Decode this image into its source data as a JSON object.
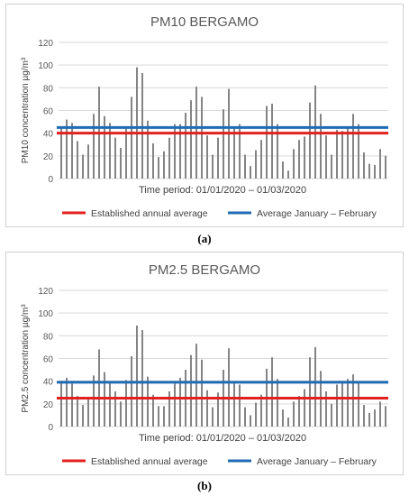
{
  "chart_data": [
    {
      "type": "bar",
      "title": "PM10 BERGAMO",
      "ylabel": "PM10 concentration µg/m³",
      "xlabel": "Time period: 01/01/2020 – 01/03/2020",
      "ylim": [
        0,
        120
      ],
      "yticks": [
        0,
        20,
        40,
        60,
        80,
        100,
        120
      ],
      "values": [
        45,
        52,
        49,
        33,
        21,
        30,
        57,
        81,
        55,
        49,
        36,
        27,
        45,
        72,
        98,
        93,
        51,
        31,
        19,
        24,
        36,
        48,
        48,
        58,
        69,
        81,
        72,
        38,
        21,
        36,
        61,
        79,
        46,
        48,
        21,
        11,
        25,
        34,
        64,
        66,
        48,
        15,
        7,
        26,
        34,
        37,
        67,
        82,
        57,
        38,
        21,
        43,
        42,
        46,
        57,
        48,
        23,
        13,
        12,
        26,
        20
      ],
      "bar_color": "#808080",
      "reference_lines": [
        {
          "name": "Established annual average",
          "value": 40,
          "color": "#e32020"
        },
        {
          "name": "Average January – February",
          "value": 45,
          "color": "#1f6cb4"
        }
      ],
      "legend_position": "bottom",
      "grid": true,
      "caption": "(a)"
    },
    {
      "type": "bar",
      "title": "PM2.5 BERGAMO",
      "ylabel": "PM2.5 concentration µg/m³",
      "xlabel": "Time period: 01/01/2020 – 01/03/2020",
      "ylim": [
        0,
        120
      ],
      "yticks": [
        0,
        20,
        40,
        60,
        80,
        100,
        120
      ],
      "values": [
        40,
        43,
        38,
        27,
        19,
        24,
        45,
        68,
        48,
        40,
        31,
        22,
        41,
        62,
        89,
        85,
        44,
        28,
        18,
        18,
        31,
        38,
        43,
        50,
        63,
        73,
        59,
        32,
        17,
        30,
        50,
        69,
        38,
        37,
        17,
        10,
        21,
        28,
        51,
        61,
        42,
        15,
        8,
        22,
        27,
        33,
        61,
        70,
        49,
        31,
        20,
        37,
        39,
        42,
        46,
        38,
        19,
        12,
        15,
        22,
        18
      ],
      "bar_color": "#808080",
      "reference_lines": [
        {
          "name": "Established annual average",
          "value": 25,
          "color": "#e32020"
        },
        {
          "name": "Average January – February",
          "value": 39,
          "color": "#1f6cb4"
        }
      ],
      "legend_position": "bottom",
      "grid": true,
      "caption": "(b)"
    }
  ]
}
